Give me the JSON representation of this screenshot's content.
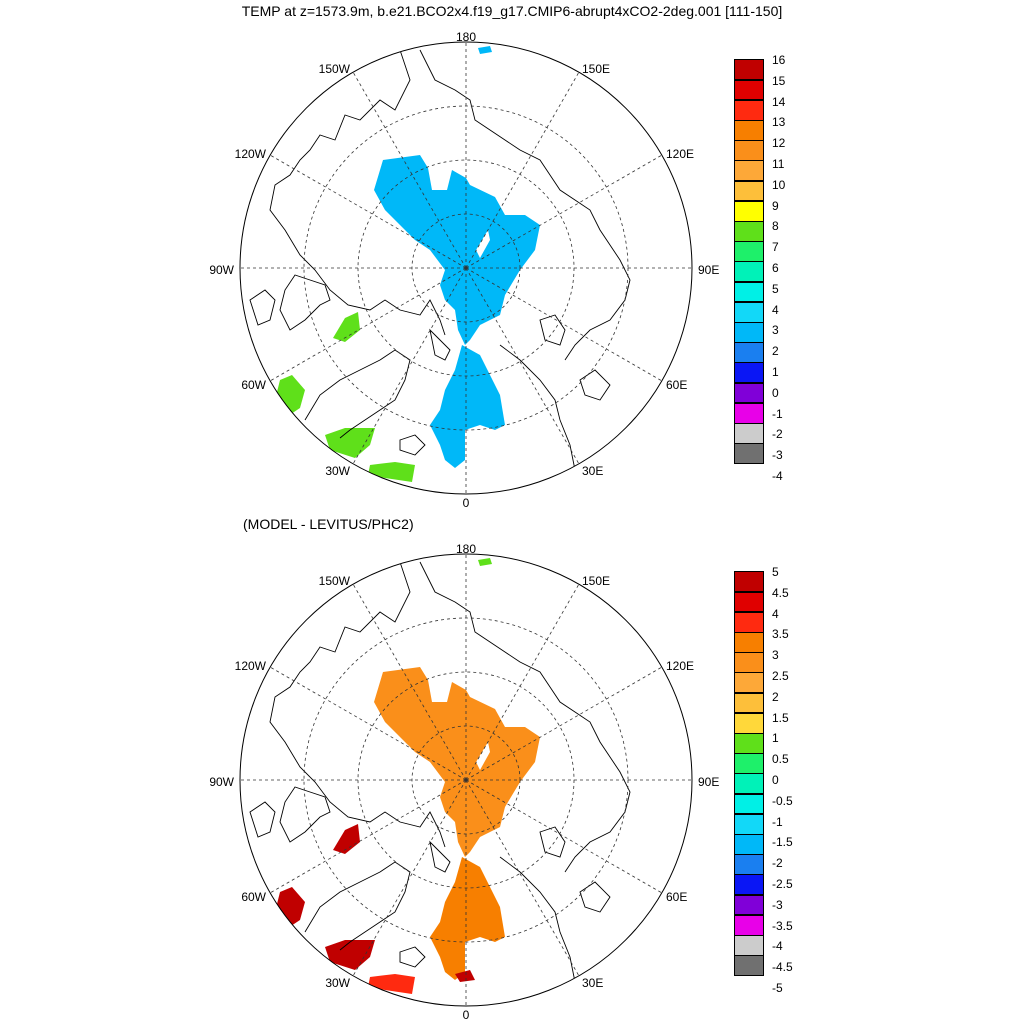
{
  "title": "TEMP at z=1573.9m, b.e21.BCO2x4.f19_g17.CMIP6-abrupt4xCO2-2deg.001 [111-150]",
  "subtitle": "(MODEL - LEVITUS/PHC2)",
  "longitude_labels": {
    "lon_180": "180",
    "lon_150e": "150E",
    "lon_120e": "120E",
    "lon_90e": "90E",
    "lon_60e": "60E",
    "lon_30e": "30E",
    "lon_0": "0",
    "lon_30w": "30W",
    "lon_60w": "60W",
    "lon_90w": "90W",
    "lon_120w": "120W",
    "lon_150w": "150W"
  },
  "colorbar_top": {
    "labels": [
      "16",
      "15",
      "14",
      "13",
      "12",
      "11",
      "10",
      "9",
      "8",
      "7",
      "6",
      "5",
      "4",
      "3",
      "2",
      "1",
      "0",
      "-1",
      "-2",
      "-3",
      "-4"
    ],
    "colors": [
      "#c00000",
      "#e00000",
      "#ff2a10",
      "#f77f00",
      "#fa8f1a",
      "#fda838",
      "#fdbf3a",
      "#ffff00",
      "#5fe01a",
      "#1ef06a",
      "#00f2b8",
      "#00f0e6",
      "#12d8f8",
      "#00b8f8",
      "#1a7ff0",
      "#0a16f5",
      "#8000d8",
      "#e800e8",
      "#cccccc",
      "#707070"
    ]
  },
  "colorbar_bottom": {
    "labels": [
      "5",
      "4.5",
      "4",
      "3.5",
      "3",
      "2.5",
      "2",
      "1.5",
      "1",
      "0.5",
      "0",
      "-0.5",
      "-1",
      "-1.5",
      "-2",
      "-2.5",
      "-3",
      "-3.5",
      "-4",
      "-4.5",
      "-5"
    ],
    "colors": [
      "#c00000",
      "#e00000",
      "#ff2a10",
      "#f77f00",
      "#fa8f1a",
      "#fda838",
      "#fdbf3a",
      "#ffd83a",
      "#5fe01a",
      "#1ef06a",
      "#00f2b8",
      "#00f0e6",
      "#12d8f8",
      "#00b8f8",
      "#1a7ff0",
      "#0a16f5",
      "#8000d8",
      "#e800e8",
      "#cccccc",
      "#707070"
    ]
  },
  "field_colors": {
    "top_arctic": "#00b8f8",
    "top_atlantic": "#5fe01a",
    "bottom_eurasian": "#fa8f1a",
    "bottom_atlantic": "#f77f00",
    "bottom_warm": "#c00000",
    "bottom_red": "#ff2a10"
  }
}
